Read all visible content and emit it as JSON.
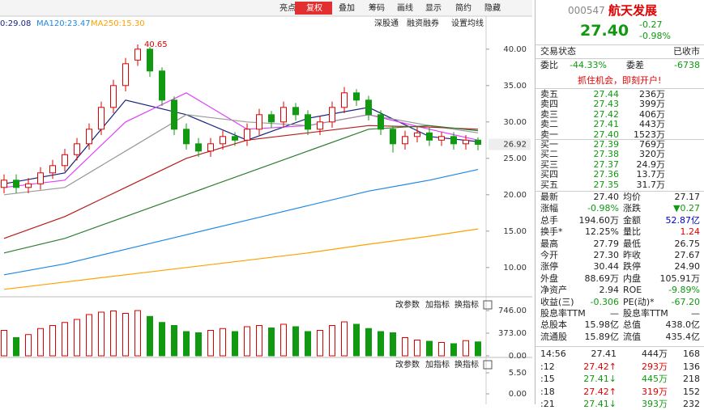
{
  "toolbar": [
    "亮点",
    "复权",
    "叠加",
    "筹码",
    "画线",
    "显示",
    "简约",
    "隐藏"
  ],
  "subtoolbar": [
    "深股通",
    "融资融券",
    "设置均线"
  ],
  "ma_labels": [
    "0:29.08",
    "MA120:23.47",
    "MA250:15.30"
  ],
  "chart": {
    "type": "candlestick",
    "ylim": [
      6.2,
      41.2
    ],
    "yticks": [
      {
        "value": 40,
        "label": "40.00"
      },
      {
        "value": 35,
        "label": "35.00"
      },
      {
        "value": 30,
        "label": "30.00"
      },
      {
        "value": 25,
        "label": "25.00"
      },
      {
        "value": 20,
        "label": "20.00"
      },
      {
        "value": 15,
        "label": "15.00"
      },
      {
        "value": 10,
        "label": "10.00"
      }
    ],
    "last": 26.92,
    "peak_label": "40.65",
    "rise_color": "#e00000",
    "fall_color": "#119911",
    "open": [
      21,
      22,
      21,
      21.5,
      23,
      24,
      25.5,
      27,
      29,
      32,
      35,
      38.5,
      40,
      37,
      33,
      29,
      27,
      26,
      27,
      28,
      27.5,
      29,
      31,
      30,
      32,
      31,
      29,
      30,
      32,
      34,
      33,
      31,
      29,
      27,
      28,
      28.5,
      27.5,
      28,
      27,
      27.5
    ],
    "high": [
      22.8,
      22.8,
      22.3,
      23.8,
      24.8,
      26.3,
      27.8,
      29.8,
      32.8,
      35.8,
      38.8,
      40.65,
      40.3,
      37.5,
      33.5,
      29.8,
      27.8,
      27.8,
      28.8,
      28.6,
      29.8,
      31.8,
      31.5,
      32.8,
      32.6,
      31.6,
      30.8,
      32.8,
      34.8,
      34.5,
      33.6,
      31.6,
      29.5,
      28.8,
      29.3,
      29.2,
      28.6,
      28.6,
      28.2,
      27.9
    ],
    "low": [
      20.2,
      20.2,
      20.2,
      20.7,
      22.2,
      23.2,
      24.7,
      26.2,
      28.2,
      31.2,
      34.2,
      37.7,
      36.2,
      32.2,
      28.2,
      26.2,
      25.2,
      25.2,
      26.2,
      26.7,
      26.7,
      28.2,
      29.2,
      29.2,
      30.2,
      28.2,
      28.2,
      29.2,
      31.2,
      32.2,
      30.2,
      28.2,
      25.8,
      26.2,
      27.2,
      26.7,
      26.7,
      26.2,
      26.2,
      26.1
    ],
    "close": [
      22,
      21,
      21.5,
      23,
      24,
      25.5,
      27,
      29,
      32,
      35,
      38,
      40,
      37,
      33,
      29,
      27,
      26,
      27,
      28,
      27.5,
      29,
      31,
      30,
      32,
      31,
      29,
      30,
      32,
      34,
      33,
      31,
      29,
      27,
      28,
      28.5,
      27.5,
      28,
      27,
      27.5,
      26.92
    ],
    "ma_x": [
      0,
      5,
      10,
      15,
      20,
      25,
      30,
      35,
      39
    ],
    "ma": [
      {
        "color": "#1a237e",
        "values": [
          21.5,
          23,
          33,
          31,
          27.5,
          30.5,
          32,
          28,
          27.3
        ]
      },
      {
        "color": "#e040fb",
        "values": [
          21,
          22,
          30,
          34,
          29,
          29.5,
          31,
          29,
          27.5
        ]
      },
      {
        "color": "#999999",
        "values": [
          20,
          21,
          26,
          31,
          30,
          29.5,
          31,
          29.5,
          28.5
        ]
      },
      {
        "color": "#b71c1c",
        "values": [
          14,
          17,
          21,
          25,
          27.5,
          28.5,
          29.5,
          29.3,
          29
        ]
      },
      {
        "color": "#2e7d32",
        "values": [
          12,
          14,
          17,
          20,
          23,
          26,
          29,
          29.5,
          28.8
        ]
      },
      {
        "color": "#1e88e5",
        "values": [
          9,
          10.5,
          12.5,
          14.5,
          16.5,
          18.5,
          20.5,
          22,
          23.47
        ]
      },
      {
        "color": "#ffa000",
        "values": [
          7,
          8,
          9,
          10,
          11,
          12,
          13.2,
          14.3,
          15.3
        ]
      }
    ]
  },
  "volume": {
    "ylim": [
      0,
      800
    ],
    "yticks": [
      {
        "value": 746,
        "label": "746.00"
      },
      {
        "value": 373,
        "label": "373.00"
      },
      {
        "value": 0,
        "label": "0.00"
      }
    ],
    "values": [
      420,
      300,
      350,
      450,
      500,
      550,
      600,
      680,
      720,
      740,
      700,
      746,
      650,
      550,
      500,
      400,
      380,
      420,
      450,
      400,
      480,
      500,
      460,
      520,
      480,
      400,
      420,
      500,
      560,
      520,
      450,
      400,
      380,
      300,
      260,
      240,
      220,
      200,
      250,
      230
    ]
  },
  "macd": {
    "yticks": [
      {
        "value": 5.5,
        "label": "5.50"
      },
      {
        "value": 0,
        "label": "0.00"
      }
    ]
  },
  "panel_buttons": [
    "改参数",
    "加指标",
    "换指标"
  ],
  "quote": {
    "code": "000547",
    "name": "航天发展",
    "price": "27.40",
    "change": "-0.27",
    "pct": "-0.98%",
    "status": [
      "交易状态",
      "已收市"
    ],
    "ratio": [
      "委比",
      "-44.33%",
      "委差",
      "-6738"
    ],
    "ad": "抓住机会，即刻开户!",
    "sell": [
      [
        "卖五",
        "27.44",
        "236万"
      ],
      [
        "卖四",
        "27.43",
        "399万"
      ],
      [
        "卖三",
        "27.42",
        "406万"
      ],
      [
        "卖二",
        "27.41",
        "443万"
      ],
      [
        "卖一",
        "27.40",
        "1523万"
      ]
    ],
    "buy": [
      [
        "买一",
        "27.39",
        "769万"
      ],
      [
        "买二",
        "27.38",
        "320万"
      ],
      [
        "买三",
        "27.37",
        "24.9万"
      ],
      [
        "买四",
        "27.36",
        "13.7万"
      ],
      [
        "买五",
        "27.35",
        "31.7万"
      ]
    ],
    "stats": [
      [
        "最新",
        "27.40",
        "均价",
        "27.17"
      ],
      [
        "涨幅",
        "-0.98%",
        "涨跌",
        "▼0.27"
      ],
      [
        "总手",
        "194.60万",
        "金额",
        "52.87亿"
      ],
      [
        "换手*",
        "12.25%",
        "量比",
        "1.24"
      ],
      [
        "最高",
        "27.79",
        "最低",
        "26.75"
      ],
      [
        "今开",
        "27.30",
        "昨收",
        "27.67"
      ],
      [
        "涨停",
        "30.44",
        "跌停",
        "24.90"
      ],
      [
        "外盘",
        "88.69万",
        "内盘",
        "105.91万"
      ],
      [
        "净资产",
        "2.94",
        "ROE",
        "-9.89%"
      ],
      [
        "收益(三)",
        "-0.306",
        "PE(动)*",
        "-67.20"
      ],
      [
        "股息率TTM",
        "—",
        "股息率TTM",
        "—"
      ],
      [
        "总股本",
        "15.98亿",
        "总值",
        "438.0亿"
      ],
      [
        "流通股",
        "15.89亿",
        "流值",
        "435.4亿"
      ]
    ],
    "ticks": [
      [
        "14:56",
        "27.41",
        "444万",
        "168"
      ],
      [
        ":12",
        "27.42↑",
        "293万",
        "136"
      ],
      [
        ":15",
        "27.41↓",
        "445万",
        "218"
      ],
      [
        ":18",
        "27.42↑",
        "319万",
        "152"
      ],
      [
        ":21",
        "27.41↓",
        "393万",
        "232"
      ]
    ]
  }
}
